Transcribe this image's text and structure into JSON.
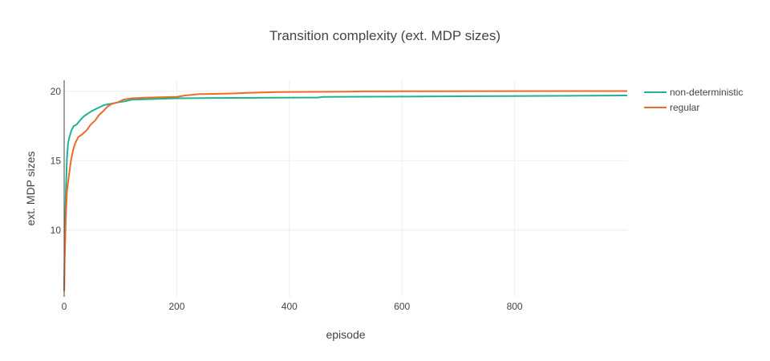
{
  "chart_data": {
    "type": "line",
    "title": "Transition complexity (ext. MDP sizes)",
    "xlabel": "episode",
    "ylabel": "ext. MDP sizes",
    "xlim": [
      0,
      1000
    ],
    "ylim": [
      5.2,
      20.8
    ],
    "xticks": [
      0,
      200,
      400,
      600,
      800
    ],
    "yticks": [
      10,
      15,
      20
    ],
    "grid": true,
    "legend_position": "top-right",
    "series": [
      {
        "name": "non-deterministic",
        "color": "#1fb396",
        "points": [
          [
            0,
            5.6
          ],
          [
            1,
            9
          ],
          [
            3,
            12.8
          ],
          [
            5,
            15.2
          ],
          [
            7,
            16.3
          ],
          [
            10,
            16.8
          ],
          [
            13,
            17.2
          ],
          [
            17,
            17.5
          ],
          [
            22,
            17.6
          ],
          [
            26,
            17.8
          ],
          [
            30,
            18
          ],
          [
            35,
            18.2
          ],
          [
            42,
            18.4
          ],
          [
            50,
            18.6
          ],
          [
            60,
            18.8
          ],
          [
            70,
            19
          ],
          [
            82,
            19.1
          ],
          [
            95,
            19.2
          ],
          [
            110,
            19.3
          ],
          [
            120,
            19.4
          ],
          [
            160,
            19.45
          ],
          [
            200,
            19.5
          ],
          [
            300,
            19.53
          ],
          [
            450,
            19.55
          ],
          [
            460,
            19.6
          ],
          [
            600,
            19.62
          ],
          [
            740,
            19.65
          ],
          [
            1000,
            19.7
          ]
        ]
      },
      {
        "name": "regular",
        "color": "#ee6a2a",
        "points": [
          [
            0,
            5.6
          ],
          [
            1,
            8
          ],
          [
            3,
            11
          ],
          [
            5,
            12.8
          ],
          [
            8,
            13.8
          ],
          [
            12,
            15
          ],
          [
            16,
            15.8
          ],
          [
            20,
            16.3
          ],
          [
            25,
            16.7
          ],
          [
            32,
            16.9
          ],
          [
            40,
            17.2
          ],
          [
            47,
            17.6
          ],
          [
            55,
            17.9
          ],
          [
            62,
            18.3
          ],
          [
            70,
            18.6
          ],
          [
            77,
            18.9
          ],
          [
            85,
            19.1
          ],
          [
            95,
            19.2
          ],
          [
            105,
            19.4
          ],
          [
            120,
            19.5
          ],
          [
            150,
            19.55
          ],
          [
            200,
            19.6
          ],
          [
            215,
            19.7
          ],
          [
            240,
            19.8
          ],
          [
            300,
            19.85
          ],
          [
            330,
            19.9
          ],
          [
            380,
            19.95
          ],
          [
            500,
            19.98
          ],
          [
            530,
            20
          ],
          [
            1000,
            20.02
          ]
        ]
      }
    ]
  }
}
